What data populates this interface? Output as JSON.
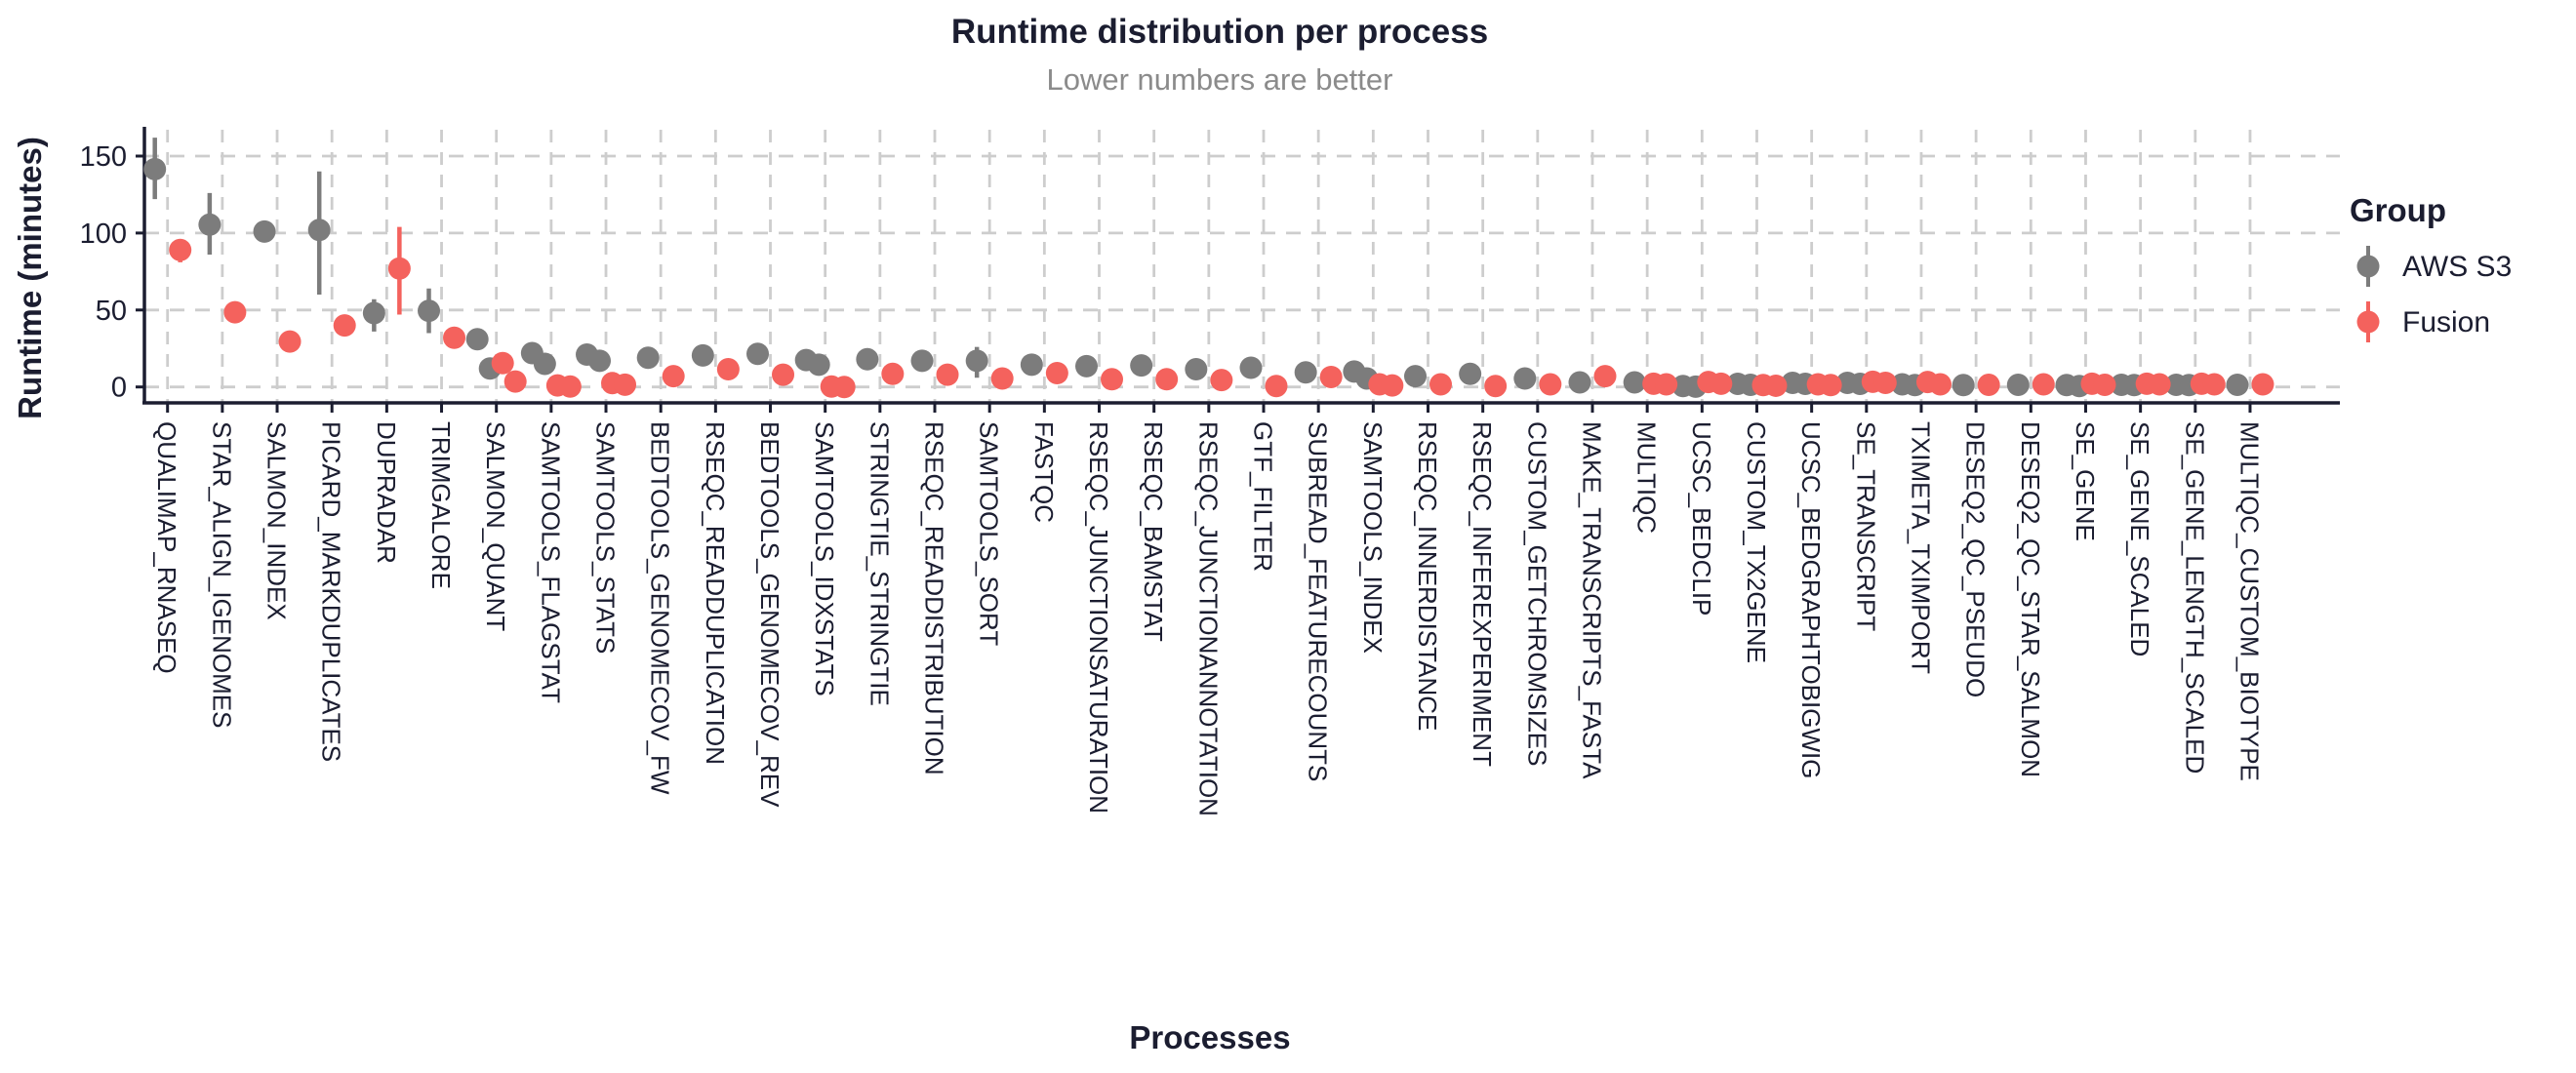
{
  "chart_data": {
    "type": "scatter",
    "title": "Runtime distribution per process",
    "subtitle": "Lower numbers are better",
    "xlabel": "Processes",
    "ylabel": "Runtime (minutes)",
    "ylim": [
      -8,
      167
    ],
    "yticks": [
      0,
      50,
      100,
      150
    ],
    "grid": "dashed",
    "legend": {
      "title": "Group",
      "position": "right",
      "entries": [
        {
          "label": "AWS S3",
          "color": "#7c7c7c"
        },
        {
          "label": "Fusion",
          "color": "#f4625d"
        }
      ]
    },
    "categories": [
      "QUALIMAP_RNASEQ",
      "STAR_ALIGN_IGENOMES",
      "SALMON_INDEX",
      "PICARD_MARKDUPLICATES",
      "DUPRADAR",
      "TRIMGALORE",
      "SALMON_QUANT",
      "SAMTOOLS_FLAGSTAT",
      "SAMTOOLS_STATS",
      "BEDTOOLS_GENOMECOV_FW",
      "RSEQC_READDUPLICATION",
      "BEDTOOLS_GENOMECOV_REV",
      "SAMTOOLS_IDXSTATS",
      "STRINGTIE_STRINGTIE",
      "RSEQC_READDISTRIBUTION",
      "SAMTOOLS_SORT",
      "FASTQC",
      "RSEQC_JUNCTIONSATURATION",
      "RSEQC_BAMSTAT",
      "RSEQC_JUNCTIONANNOTATION",
      "GTF_FILTER",
      "SUBREAD_FEATURECOUNTS",
      "SAMTOOLS_INDEX",
      "RSEQC_INNERDISTANCE",
      "RSEQC_INFEREXPERIMENT",
      "CUSTOM_GETCHROMSIZES",
      "MAKE_TRANSCRIPTS_FASTA",
      "MULTIQC",
      "UCSC_BEDCLIP",
      "CUSTOM_TX2GENE",
      "UCSC_BEDGRAPHTOBIGWIG",
      "SE_TRANSCRIPT",
      "TXIMETA_TXIMPORT",
      "DESEQ2_QC_PSEUDO",
      "DESEQ2_QC_STAR_SALMON",
      "SE_GENE",
      "SE_GENE_SCALED",
      "SE_GENE_LENGTH_SCALED",
      "MULTIQC_CUSTOM_BIOTYPE"
    ],
    "series": [
      {
        "name": "AWS S3",
        "color": "#7c7c7c",
        "points": [
          [
            141.5
          ],
          [
            105.5
          ],
          [
            101
          ],
          [
            102
          ],
          [
            48
          ],
          [
            49.5
          ],
          [
            31,
            12
          ],
          [
            22,
            15
          ],
          [
            21,
            17
          ],
          [
            19
          ],
          [
            20.5
          ],
          [
            21.5
          ],
          [
            17.5,
            14.5
          ],
          [
            18
          ],
          [
            17
          ],
          [
            17
          ],
          [
            14.5
          ],
          [
            13.5
          ],
          [
            14
          ],
          [
            11.5
          ],
          [
            12.5
          ],
          [
            9.5
          ],
          [
            10,
            5.5
          ],
          [
            7
          ],
          [
            8.5
          ],
          [
            5.5
          ],
          [
            3
          ],
          [
            3
          ],
          [
            0.6,
            0.2
          ],
          [
            2,
            1.4
          ],
          [
            2.7,
            2
          ],
          [
            2.7,
            2
          ],
          [
            1.7,
            1.2
          ],
          [
            1.2
          ],
          [
            1.4
          ],
          [
            1.2,
            0.6
          ],
          [
            1.4,
            1.2
          ],
          [
            1.4,
            1.2
          ],
          [
            1.4
          ]
        ],
        "ranges": [
          [
            122,
            162
          ],
          [
            86,
            126
          ],
          null,
          [
            60,
            140
          ],
          [
            36,
            57
          ],
          [
            35,
            64
          ],
          null,
          null,
          null,
          null,
          null,
          null,
          null,
          null,
          null,
          [
            6,
            26
          ],
          null,
          null,
          null,
          null,
          null,
          null,
          null,
          null,
          null,
          null,
          null,
          null,
          null,
          null,
          null,
          null,
          null,
          null,
          null,
          null,
          null,
          null,
          null
        ]
      },
      {
        "name": "Fusion",
        "color": "#f4625d",
        "points": [
          [
            89
          ],
          [
            48.5
          ],
          [
            29.5
          ],
          [
            40
          ],
          [
            77
          ],
          [
            32
          ],
          [
            15.5,
            3.5
          ],
          [
            1,
            0.3
          ],
          [
            2.5,
            1.5
          ],
          [
            7
          ],
          [
            11.5
          ],
          [
            8
          ],
          [
            0.3,
            0
          ],
          [
            8.5
          ],
          [
            8
          ],
          [
            5.5
          ],
          [
            9
          ],
          [
            5
          ],
          [
            5
          ],
          [
            4.5
          ],
          [
            0.6
          ],
          [
            6.5
          ],
          [
            1.7,
            1
          ],
          [
            1.7
          ],
          [
            0.6
          ],
          [
            1.7
          ],
          [
            7
          ],
          [
            2.1,
            1.7
          ],
          [
            3.2,
            2.1
          ],
          [
            1.2,
            0.8
          ],
          [
            1.7,
            1.2
          ],
          [
            3.4,
            2.7
          ],
          [
            3.2,
            1.7
          ],
          [
            1.4
          ],
          [
            1.7
          ],
          [
            2.1,
            1.4
          ],
          [
            2.1,
            1.7
          ],
          [
            2.1,
            1.7
          ],
          [
            1.7
          ]
        ],
        "ranges": [
          [
            81,
            96
          ],
          null,
          null,
          null,
          [
            47,
            104
          ],
          null,
          null,
          null,
          null,
          null,
          null,
          null,
          null,
          null,
          null,
          null,
          null,
          null,
          null,
          null,
          null,
          null,
          null,
          null,
          null,
          null,
          null,
          null,
          null,
          null,
          null,
          null,
          null,
          null,
          null,
          null,
          null,
          null,
          null
        ]
      }
    ],
    "colors": {
      "axis_text": "#1b1d30",
      "subtitle": "#8b8b8b",
      "gridline": "#cdcdcd",
      "background": "#ffffff"
    }
  }
}
